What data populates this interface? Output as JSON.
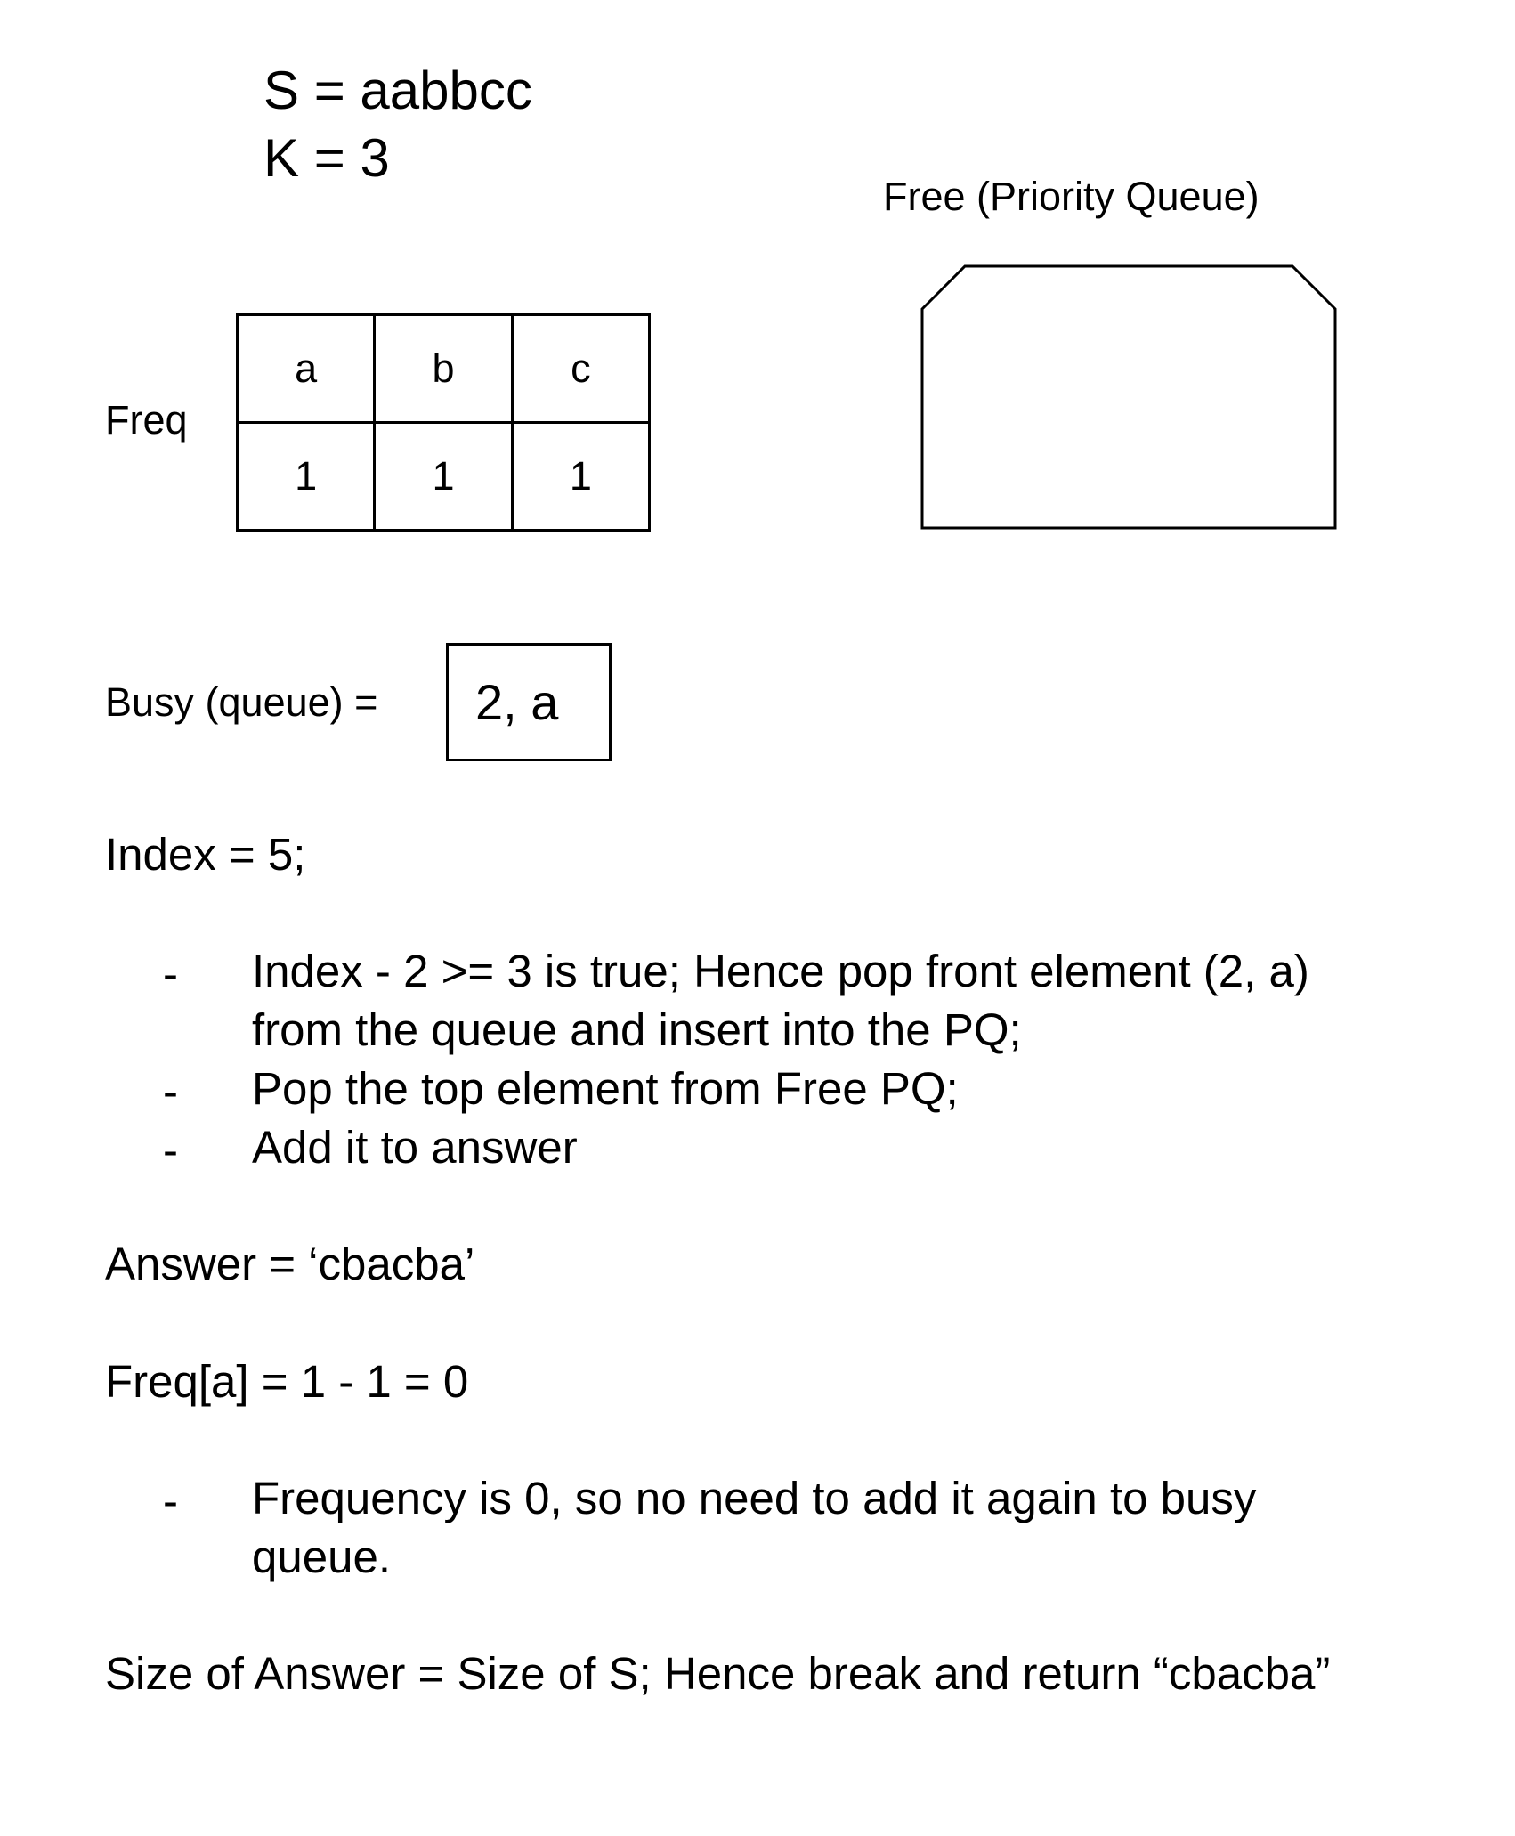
{
  "header": {
    "s_line": "S = aabbcc",
    "k_line": "K = 3"
  },
  "free_pq": {
    "label": "Free (Priority Queue)"
  },
  "freq": {
    "label": "Freq",
    "headers": [
      "a",
      "b",
      "c"
    ],
    "values": [
      "1",
      "1",
      "1"
    ]
  },
  "busy": {
    "label": "Busy (queue) =",
    "item": "2, a"
  },
  "index_line": "Index = 5;",
  "steps": {
    "bullet": "-",
    "step1_line1": "Index - 2 >= 3 is true; Hence pop front element   (2, a)",
    "step1_line2": "from the queue and insert into the PQ;",
    "step2": "Pop the top element from Free PQ;",
    "step3": "Add it to answer"
  },
  "answer_line": "Answer = ‘cbacba’",
  "freq_update_line": "Freq[a] = 1 - 1 = 0",
  "note": {
    "bullet": "-",
    "line1": "Frequency is 0, so no need to add it again to busy",
    "line2": "queue."
  },
  "final_line": "Size of Answer = Size of S; Hence break and return “cbacba”"
}
